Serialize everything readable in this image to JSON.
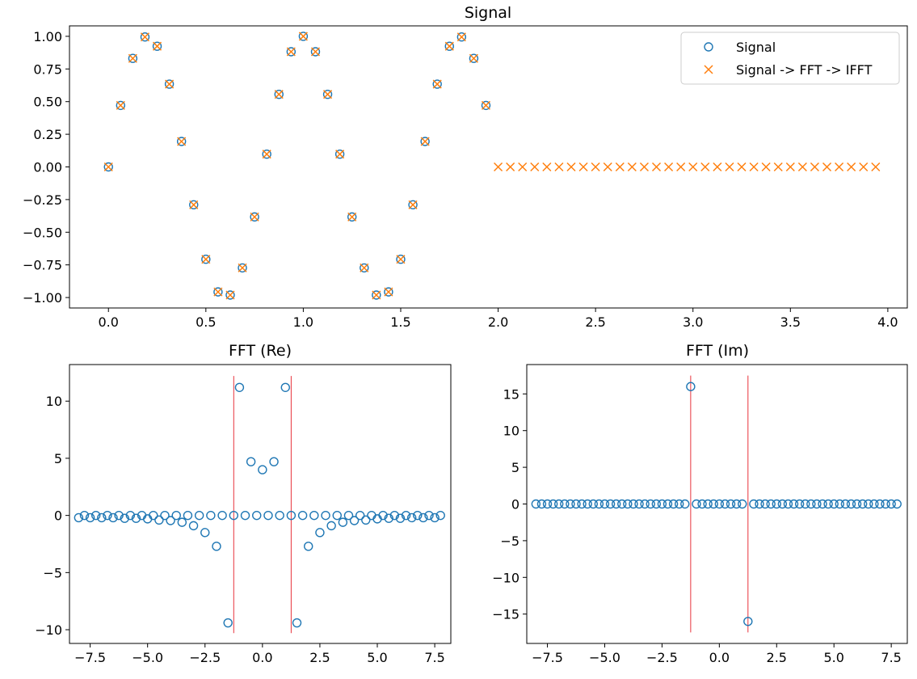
{
  "colors": {
    "signal": "#1f77b4",
    "ifft": "#ff7f0e",
    "marker_line": "#e8323c",
    "axes": "#000000",
    "background": "#ffffff"
  },
  "chart_data": [
    {
      "type": "scatter",
      "title": "Signal",
      "xlabel": "",
      "ylabel": "",
      "xlim": [
        -0.2,
        4.1
      ],
      "ylim": [
        -1.08,
        1.08
      ],
      "xticks": [
        "0.0",
        "0.5",
        "1.0",
        "1.5",
        "2.0",
        "2.5",
        "3.0",
        "3.5",
        "4.0"
      ],
      "yticks": [
        "1.00",
        "0.75",
        "0.50",
        "0.25",
        "0.00",
        "−0.25",
        "−0.50",
        "−0.75",
        "−1.00"
      ],
      "grid": false,
      "legend_position": "top-right",
      "legend": [
        "Signal",
        "Signal -> FFT -> IFFT"
      ],
      "series": [
        {
          "name": "Signal",
          "marker": "circle",
          "x": [
            0,
            0.0625,
            0.125,
            0.1875,
            0.25,
            0.3125,
            0.375,
            0.4375,
            0.5,
            0.5625,
            0.625,
            0.6875,
            0.75,
            0.8125,
            0.875,
            0.9375,
            1.0,
            1.0625,
            1.125,
            1.1875,
            1.25,
            1.3125,
            1.375,
            1.4375,
            1.5,
            1.5625,
            1.625,
            1.6875,
            1.75,
            1.8125,
            1.875,
            1.9375
          ],
          "y": [
            0.0,
            0.471,
            0.831,
            0.995,
            0.924,
            0.634,
            0.195,
            -0.29,
            -0.707,
            -0.957,
            -0.981,
            -0.773,
            -0.383,
            0.098,
            0.556,
            0.882,
            1.0,
            0.882,
            0.556,
            0.098,
            -0.383,
            -0.773,
            -0.981,
            -0.957,
            -0.707,
            -0.29,
            0.195,
            0.634,
            0.924,
            0.995,
            0.831,
            0.471
          ]
        },
        {
          "name": "Signal -> FFT -> IFFT",
          "marker": "x",
          "x": [
            0,
            0.0625,
            0.125,
            0.1875,
            0.25,
            0.3125,
            0.375,
            0.4375,
            0.5,
            0.5625,
            0.625,
            0.6875,
            0.75,
            0.8125,
            0.875,
            0.9375,
            1.0,
            1.0625,
            1.125,
            1.1875,
            1.25,
            1.3125,
            1.375,
            1.4375,
            1.5,
            1.5625,
            1.625,
            1.6875,
            1.75,
            1.8125,
            1.875,
            1.9375,
            2.0,
            2.0625,
            2.125,
            2.1875,
            2.25,
            2.3125,
            2.375,
            2.4375,
            2.5,
            2.5625,
            2.625,
            2.6875,
            2.75,
            2.8125,
            2.875,
            2.9375,
            3.0,
            3.0625,
            3.125,
            3.1875,
            3.25,
            3.3125,
            3.375,
            3.4375,
            3.5,
            3.5625,
            3.625,
            3.6875,
            3.75,
            3.8125,
            3.875,
            3.9375
          ],
          "y": [
            0.0,
            0.471,
            0.831,
            0.995,
            0.924,
            0.634,
            0.195,
            -0.29,
            -0.707,
            -0.957,
            -0.981,
            -0.773,
            -0.383,
            0.098,
            0.556,
            0.882,
            1.0,
            0.882,
            0.556,
            0.098,
            -0.383,
            -0.773,
            -0.981,
            -0.957,
            -0.707,
            -0.29,
            0.195,
            0.634,
            0.924,
            0.995,
            0.831,
            0.471,
            0,
            0,
            0,
            0,
            0,
            0,
            0,
            0,
            0,
            0,
            0,
            0,
            0,
            0,
            0,
            0,
            0,
            0,
            0,
            0,
            0,
            0,
            0,
            0,
            0,
            0,
            0,
            0,
            0,
            0,
            0,
            0
          ]
        }
      ]
    },
    {
      "type": "scatter",
      "title": "FFT (Re)",
      "xlabel": "",
      "ylabel": "",
      "xlim": [
        -8.4,
        8.2
      ],
      "ylim": [
        -11.2,
        13.2
      ],
      "xticks": [
        "−7.5",
        "−5.0",
        "−2.5",
        "0.0",
        "2.5",
        "5.0",
        "7.5"
      ],
      "yticks": [
        "10",
        "5",
        "0",
        "−5",
        "−10"
      ],
      "grid": false,
      "vlines": [
        {
          "x": -1.25,
          "ymin": -10.3,
          "ymax": 12.2
        },
        {
          "x": 1.25,
          "ymin": -10.3,
          "ymax": 12.2
        }
      ],
      "series": [
        {
          "marker": "circle",
          "x": [
            -8.0,
            -7.75,
            -7.5,
            -7.25,
            -7.0,
            -6.75,
            -6.5,
            -6.25,
            -6.0,
            -5.75,
            -5.5,
            -5.25,
            -5.0,
            -4.75,
            -4.5,
            -4.25,
            -4.0,
            -3.75,
            -3.5,
            -3.25,
            -3.0,
            -2.75,
            -2.5,
            -2.25,
            -2.0,
            -1.75,
            -1.5,
            -1.25,
            -1.0,
            -0.75,
            -0.5,
            -0.25,
            0.0,
            0.25,
            0.5,
            0.75,
            1.0,
            1.25,
            1.5,
            1.75,
            2.0,
            2.25,
            2.5,
            2.75,
            3.0,
            3.25,
            3.5,
            3.75,
            4.0,
            4.25,
            4.5,
            4.75,
            5.0,
            5.25,
            5.5,
            5.75,
            6.0,
            6.25,
            6.5,
            6.75,
            7.0,
            7.25,
            7.5,
            7.75
          ],
          "y": [
            -0.2,
            0,
            -0.2,
            0,
            -0.2,
            0,
            -0.2,
            0,
            -0.25,
            0,
            -0.25,
            0,
            -0.3,
            0,
            -0.4,
            0,
            -0.45,
            0,
            -0.6,
            0,
            -0.9,
            0,
            -1.5,
            0,
            -2.7,
            0,
            -9.4,
            0,
            11.2,
            0,
            4.7,
            0,
            4.0,
            0,
            4.7,
            0,
            11.2,
            0,
            -9.4,
            0,
            -2.7,
            0,
            -1.5,
            0,
            -0.9,
            0,
            -0.6,
            0,
            -0.45,
            0,
            -0.4,
            0,
            -0.3,
            0,
            -0.25,
            0,
            -0.25,
            0,
            -0.2,
            0,
            -0.2,
            0,
            -0.2,
            0
          ]
        }
      ]
    },
    {
      "type": "scatter",
      "title": "FFT (Im)",
      "xlabel": "",
      "ylabel": "",
      "xlim": [
        -8.4,
        8.2
      ],
      "ylim": [
        -19.0,
        19.0
      ],
      "xticks": [
        "−7.5",
        "−5.0",
        "−2.5",
        "0.0",
        "2.5",
        "5.0",
        "7.5"
      ],
      "yticks": [
        "15",
        "10",
        "5",
        "0",
        "−5",
        "−10",
        "−15"
      ],
      "grid": false,
      "vlines": [
        {
          "x": -1.25,
          "ymin": -17.5,
          "ymax": 17.5
        },
        {
          "x": 1.25,
          "ymin": -17.5,
          "ymax": 17.5
        }
      ],
      "series": [
        {
          "marker": "circle",
          "x": [
            -8.0,
            -7.75,
            -7.5,
            -7.25,
            -7.0,
            -6.75,
            -6.5,
            -6.25,
            -6.0,
            -5.75,
            -5.5,
            -5.25,
            -5.0,
            -4.75,
            -4.5,
            -4.25,
            -4.0,
            -3.75,
            -3.5,
            -3.25,
            -3.0,
            -2.75,
            -2.5,
            -2.25,
            -2.0,
            -1.75,
            -1.5,
            -1.25,
            -1.0,
            -0.75,
            -0.5,
            -0.25,
            0.0,
            0.25,
            0.5,
            0.75,
            1.0,
            1.25,
            1.5,
            1.75,
            2.0,
            2.25,
            2.5,
            2.75,
            3.0,
            3.25,
            3.5,
            3.75,
            4.0,
            4.25,
            4.5,
            4.75,
            5.0,
            5.25,
            5.5,
            5.75,
            6.0,
            6.25,
            6.5,
            6.75,
            7.0,
            7.25,
            7.5,
            7.75
          ],
          "y": [
            0,
            0,
            0,
            0,
            0,
            0,
            0,
            0,
            0,
            0,
            0,
            0,
            0,
            0,
            0,
            0,
            0,
            0,
            0,
            0,
            0,
            0,
            0,
            0,
            0,
            0,
            0,
            16.0,
            0,
            0,
            0,
            0,
            0,
            0,
            0,
            0,
            0,
            -16.0,
            0,
            0,
            0,
            0,
            0,
            0,
            0,
            0,
            0,
            0,
            0,
            0,
            0,
            0,
            0,
            0,
            0,
            0,
            0,
            0,
            0,
            0,
            0,
            0,
            0,
            0
          ]
        }
      ]
    }
  ]
}
